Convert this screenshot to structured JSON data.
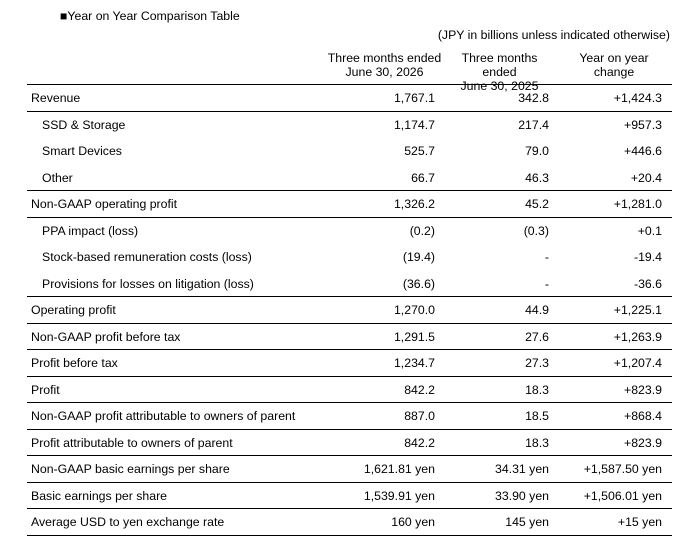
{
  "title": "■Year on Year Comparison Table",
  "unit_note": "(JPY in billions unless indicated otherwise)",
  "headers": {
    "col1": [
      "Three months ended",
      "June 30, 2026"
    ],
    "col2": [
      "Three months ended",
      "June 30, 2025"
    ],
    "col3": [
      "Year on year",
      "change"
    ]
  },
  "rows": [
    {
      "label": "Revenue",
      "c1": "1,767.1",
      "c2": "342.8",
      "c3": "+1,424.3"
    },
    {
      "label": "SSD & Storage",
      "c1": "1,174.7",
      "c2": "217.4",
      "c3": "+957.3"
    },
    {
      "label": "Smart Devices",
      "c1": "525.7",
      "c2": "79.0",
      "c3": "+446.6"
    },
    {
      "label": "Other",
      "c1": "66.7",
      "c2": "46.3",
      "c3": "+20.4"
    },
    {
      "label": "Non-GAAP operating profit",
      "c1": "1,326.2",
      "c2": "45.2",
      "c3": "+1,281.0"
    },
    {
      "label": "PPA impact (loss)",
      "c1": "(0.2)",
      "c2": "(0.3)",
      "c3": "+0.1"
    },
    {
      "label": "Stock-based remuneration costs (loss)",
      "c1": "(19.4)",
      "c2": "-",
      "c3": "-19.4"
    },
    {
      "label": "Provisions for losses on litigation (loss)",
      "c1": "(36.6)",
      "c2": "-",
      "c3": "-36.6"
    },
    {
      "label": "Operating profit",
      "c1": "1,270.0",
      "c2": "44.9",
      "c3": "+1,225.1"
    },
    {
      "label": "Non-GAAP profit before tax",
      "c1": "1,291.5",
      "c2": "27.6",
      "c3": "+1,263.9"
    },
    {
      "label": "Profit before tax",
      "c1": "1,234.7",
      "c2": "27.3",
      "c3": "+1,207.4"
    },
    {
      "label": "Profit",
      "c1": "842.2",
      "c2": "18.3",
      "c3": "+823.9"
    },
    {
      "label": "Non-GAAP profit attributable to owners of parent",
      "c1": "887.0",
      "c2": "18.5",
      "c3": "+868.4"
    },
    {
      "label": "Profit attributable to owners of parent",
      "c1": "842.2",
      "c2": "18.3",
      "c3": "+823.9"
    },
    {
      "label": "Non-GAAP basic earnings per share",
      "c1": "1,621.81 yen",
      "c2": "34.31 yen",
      "c3": "+1,587.50 yen"
    },
    {
      "label": "Basic earnings per share",
      "c1": "1,539.91 yen",
      "c2": "33.90 yen",
      "c3": "+1,506.01 yen"
    },
    {
      "label": "Average USD to yen exchange rate",
      "c1": "160 yen",
      "c2": "145 yen",
      "c3": "+15 yen"
    }
  ]
}
